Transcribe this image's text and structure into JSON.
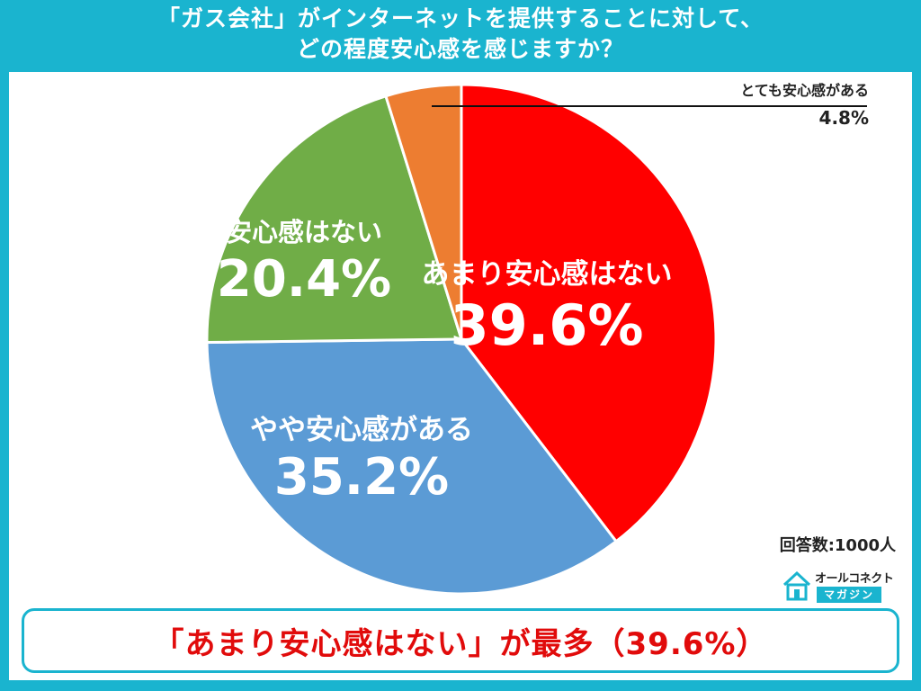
{
  "title_line1": "「ガス会社」がインターネットを提供することに対して、",
  "title_line2": "どの程度安心感を感じますか？",
  "chart_data": {
    "type": "pie",
    "title": "「ガス会社」がインターネットを提供することに対して、どの程度安心感を感じますか？",
    "slices": [
      {
        "label": "あまり安心感はない",
        "value": 39.6,
        "display": "39.6%",
        "color": "#ff0000"
      },
      {
        "label": "やや安心感がある",
        "value": 35.2,
        "display": "35.2%",
        "color": "#5b9bd5"
      },
      {
        "label": "安心感はない",
        "value": 20.4,
        "display": "20.4%",
        "color": "#70ad47"
      },
      {
        "label": "とても安心感がある",
        "value": 4.8,
        "display": "4.8%",
        "color": "#ed7d31"
      }
    ],
    "start": "12 o'clock",
    "direction": "clockwise"
  },
  "respondents": "回答数:1000人",
  "logo": {
    "top": "オールコネクト",
    "bottom": "マガジン"
  },
  "conclusion": "「あまり安心感はない」が最多（39.6%）"
}
